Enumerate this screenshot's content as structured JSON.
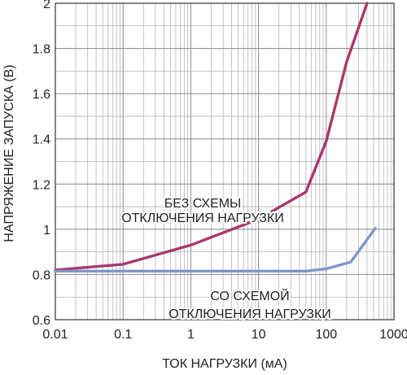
{
  "chart_data": {
    "type": "line",
    "title": "",
    "xlabel": "ТОК НАГРУЗКИ (мА)",
    "ylabel": "НАПРЯЖЕНИЕ ЗАПУСКА (В)",
    "x_scale": "log",
    "xlim": [
      0.01,
      1000
    ],
    "ylim": [
      0.6,
      2.0
    ],
    "x_ticks": [
      "0.01",
      "0.1",
      "1",
      "10",
      "100",
      "1000"
    ],
    "y_ticks": [
      "0.6",
      "0.8",
      "1",
      "1.2",
      "1.4",
      "1.6",
      "1.8",
      "2"
    ],
    "grid": true,
    "series": [
      {
        "name": "БЕЗ СХЕМЫ ОТКЛЮЧЕНИЯ НАГРУЗКИ",
        "color": "#a8386e",
        "x": [
          0.01,
          0.1,
          1,
          10,
          50,
          100,
          200,
          400
        ],
        "y": [
          0.82,
          0.845,
          0.93,
          1.045,
          1.165,
          1.39,
          1.74,
          2.0
        ]
      },
      {
        "name": "СО СХЕМОЙ ОТКЛЮЧЕНИЯ НАГРУЗКИ",
        "color": "#7e97c8",
        "x": [
          0.01,
          0.1,
          1,
          10,
          50,
          100,
          230,
          530
        ],
        "y": [
          0.815,
          0.815,
          0.815,
          0.815,
          0.815,
          0.825,
          0.855,
          1.005
        ]
      }
    ],
    "annotations": [
      {
        "lines": [
          "БЕЗ СХЕМЫ",
          "ОТКЛЮЧЕНИЯ НАГРУЗКИ"
        ],
        "series": 0
      },
      {
        "lines": [
          "СО СХЕМОЙ",
          "ОТКЛЮЧЕНИЯ НАГРУЗКИ"
        ],
        "series": 1
      }
    ]
  }
}
